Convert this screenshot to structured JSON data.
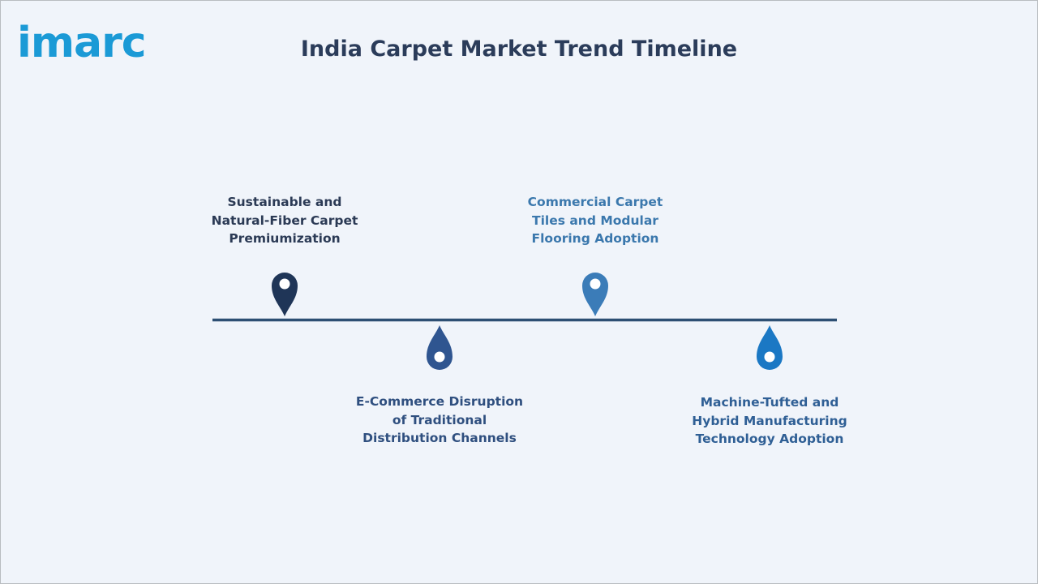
{
  "header": {
    "logo": "imarc",
    "title": "India Carpet Market Trend Timeline"
  },
  "timeline": {
    "items": [
      {
        "label": "Sustainable and Natural-Fiber Carpet Premiumization"
      },
      {
        "label": "E-Commerce Disruption of Traditional Distribution Channels"
      },
      {
        "label": "Commercial Carpet Tiles and Modular Flooring Adoption"
      },
      {
        "label": "Machine-Tufted and Hybrid Manufacturing Technology Adoption"
      }
    ]
  }
}
